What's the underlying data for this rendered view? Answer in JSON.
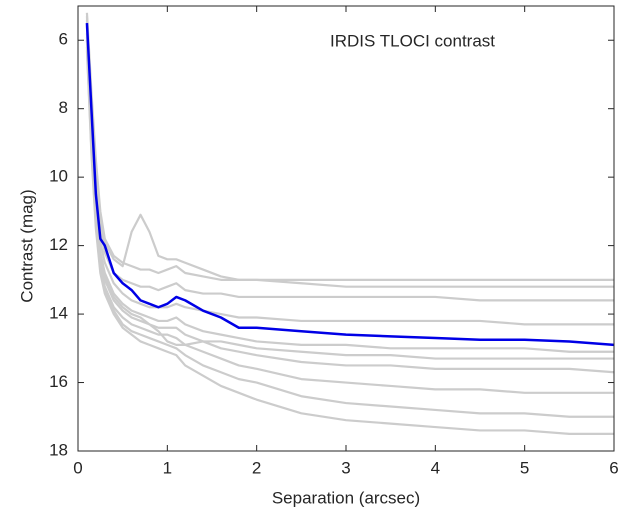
{
  "chart_data": {
    "type": "line",
    "annotation": "IRDIS TLOCI contrast",
    "x_label": "Separation (arcsec)",
    "y_label": "Contrast (mag)",
    "x": [
      0.1,
      0.15,
      0.2,
      0.25,
      0.3,
      0.4,
      0.5,
      0.6,
      0.7,
      0.8,
      0.9,
      1.0,
      1.1,
      1.2,
      1.4,
      1.6,
      1.8,
      2.0,
      2.5,
      3.0,
      3.5,
      4.0,
      4.5,
      5.0,
      5.5,
      6.0
    ],
    "xlim": [
      0,
      6
    ],
    "xticks": [
      0,
      1,
      2,
      3,
      4,
      5,
      6
    ],
    "ylim": [
      5,
      18
    ],
    "yticks": [
      6,
      8,
      10,
      12,
      14,
      16,
      18
    ],
    "y_reversed": true,
    "series": [
      {
        "color": "#cccccc",
        "values": [
          5.2,
          7.5,
          9.5,
          11,
          11.8,
          12.3,
          12.5,
          12.6,
          12.7,
          12.7,
          12.8,
          12.7,
          12.6,
          12.8,
          12.9,
          13.0,
          13.0,
          13.0,
          13.0,
          13.0,
          13.0,
          13.0,
          13.0,
          13.0,
          13.0,
          13.0
        ]
      },
      {
        "color": "#cccccc",
        "values": [
          5.4,
          8,
          10,
          11.5,
          12.2,
          12.8,
          13.0,
          13.1,
          13.2,
          13.2,
          13.3,
          13.2,
          13.1,
          13.3,
          13.4,
          13.4,
          13.5,
          13.5,
          13.5,
          13.5,
          13.5,
          13.5,
          13.6,
          13.6,
          13.6,
          13.6
        ]
      },
      {
        "color": "#cccccc",
        "values": [
          5.6,
          8.3,
          10.4,
          11.9,
          12.5,
          13.1,
          13.4,
          13.6,
          13.7,
          13.8,
          13.8,
          13.8,
          13.7,
          13.8,
          13.9,
          14.0,
          14.1,
          14.1,
          14.2,
          14.2,
          14.2,
          14.2,
          14.2,
          14.3,
          14.3,
          14.3
        ]
      },
      {
        "color": "#cccccc",
        "values": [
          5.8,
          8.6,
          10.8,
          12.2,
          12.8,
          13.4,
          13.7,
          13.9,
          14.0,
          14.1,
          14.2,
          14.2,
          14.1,
          14.3,
          14.5,
          14.6,
          14.7,
          14.8,
          14.9,
          14.9,
          15.0,
          15.0,
          15.0,
          15.0,
          15.1,
          15.1
        ]
      },
      {
        "color": "#cccccc",
        "values": [
          6,
          8.8,
          11,
          12.4,
          13,
          13.6,
          13.9,
          14.1,
          14.2,
          14.3,
          14.4,
          14.4,
          14.4,
          14.6,
          14.8,
          15.0,
          15.1,
          15.2,
          15.4,
          15.5,
          15.5,
          15.6,
          15.6,
          15.6,
          15.6,
          15.7
        ]
      },
      {
        "color": "#cccccc",
        "values": [
          6,
          9,
          11.2,
          12.6,
          13.2,
          13.8,
          14.1,
          14.3,
          14.4,
          14.5,
          14.6,
          14.6,
          14.7,
          14.9,
          15.1,
          15.3,
          15.5,
          15.6,
          15.9,
          16.0,
          16.1,
          16.2,
          16.2,
          16.3,
          16.3,
          16.3
        ]
      },
      {
        "color": "#cccccc",
        "values": [
          6.2,
          9.2,
          11.4,
          12.7,
          13.3,
          13.9,
          14.3,
          14.5,
          14.6,
          14.7,
          14.8,
          14.9,
          15.0,
          15.2,
          15.5,
          15.7,
          15.9,
          16.0,
          16.4,
          16.6,
          16.7,
          16.8,
          16.9,
          16.9,
          17.0,
          17.0
        ]
      },
      {
        "color": "#cccccc",
        "values": [
          6.3,
          9.3,
          11.5,
          12.8,
          13.4,
          14,
          14.4,
          14.6,
          14.8,
          14.9,
          15.0,
          15.1,
          15.2,
          15.5,
          15.8,
          16.1,
          16.3,
          16.5,
          16.9,
          17.1,
          17.2,
          17.3,
          17.4,
          17.4,
          17.5,
          17.5
        ]
      },
      {
        "color": "#cccccc",
        "values": [
          5.3,
          7.8,
          9.8,
          11.3,
          11.9,
          12.4,
          12.6,
          11.6,
          11.1,
          11.6,
          12.3,
          12.4,
          12.4,
          12.5,
          12.7,
          12.9,
          13.0,
          13.0,
          13.1,
          13.2,
          13.2,
          13.2,
          13.2,
          13.2,
          13.2,
          13.2
        ]
      },
      {
        "color": "#cccccc",
        "values": [
          5.9,
          8.7,
          10.9,
          12.3,
          12.9,
          13.5,
          13.8,
          14.0,
          14.1,
          14.3,
          14.5,
          14.8,
          14.9,
          14.9,
          14.8,
          14.8,
          14.9,
          15.0,
          15.1,
          15.2,
          15.2,
          15.3,
          15.3,
          15.3,
          15.3,
          15.3
        ]
      },
      {
        "color": "#0000e6",
        "values": [
          5.5,
          8,
          10.5,
          11.8,
          12,
          12.8,
          13.1,
          13.3,
          13.6,
          13.7,
          13.8,
          13.7,
          13.5,
          13.6,
          13.9,
          14.1,
          14.4,
          14.4,
          14.5,
          14.6,
          14.65,
          14.7,
          14.75,
          14.75,
          14.8,
          14.9
        ]
      }
    ]
  }
}
